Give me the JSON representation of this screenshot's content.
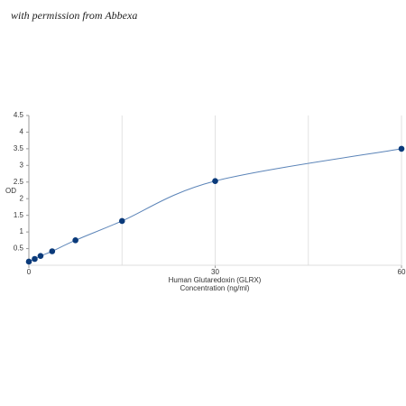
{
  "watermark": "with permission from Abbexa",
  "chart_data": {
    "type": "line",
    "ylabel": "OD",
    "xlabel": [
      "Human Glutaredoxin (GLRX)",
      "Concentration (ng/ml)"
    ],
    "x": [
      0,
      0.94,
      1.88,
      3.75,
      7.5,
      15,
      30,
      60
    ],
    "series": [
      {
        "color": "#0a3a7a",
        "line_color": "#5b84b8",
        "values": [
          0.11,
          0.19,
          0.28,
          0.42,
          0.75,
          1.33,
          2.53,
          3.5
        ]
      }
    ],
    "xlim": [
      0,
      60
    ],
    "xticks": [
      0,
      30,
      60
    ],
    "x_minor_ticks": [
      15,
      45
    ],
    "ylim": [
      0,
      4.5
    ],
    "yticks": [
      0.5,
      1,
      1.5,
      2,
      2.5,
      3,
      3.5,
      4,
      4.5
    ],
    "grid": "x",
    "smooth": true
  }
}
